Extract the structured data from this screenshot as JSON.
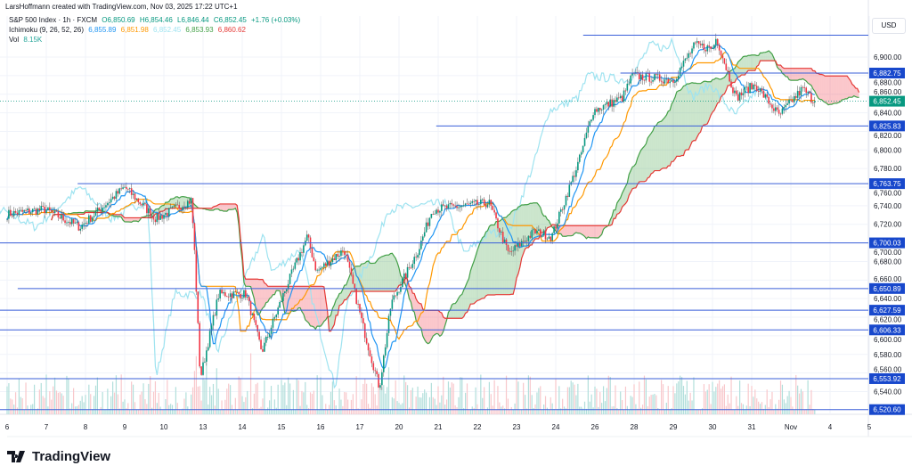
{
  "credit": "LarsHoffmann created with TradingView.com, Nov 03, 2025 17:22 UTC+1",
  "legend": {
    "symbol": "S&P 500 Index · 1h · FXCM",
    "open": "O6,850.69",
    "high": "H6,854.46",
    "low": "L6,846.44",
    "close": "C6,852.45",
    "change": "+1.76 (+0.03%)",
    "ichimoku_label": "Ichimoku (9, 26, 52, 26)",
    "ichimoku_values": [
      "6,855.89",
      "6,851.98",
      "6,852.45",
      "6,853.93",
      "6,860.62"
    ],
    "vol_label": "Vol",
    "vol_value": "8.15K"
  },
  "currency": "USD",
  "brand": "TradingView",
  "colors": {
    "up": "#089981",
    "down": "#f23645",
    "tenkan": "#2196f3",
    "kijun": "#ff9800",
    "chikou": "#9ee3f0",
    "spanA": "#43a047",
    "spanB": "#e53935",
    "level": "#3a5fd9",
    "label_bg": "#1848cc"
  },
  "chart_data": {
    "type": "candlestick",
    "bars_per_day": 23,
    "x_tick_labels": [
      "6",
      "7",
      "8",
      "9",
      "10",
      "13",
      "14",
      "15",
      "16",
      "17",
      "20",
      "21",
      "22",
      "23",
      "24",
      "26",
      "28",
      "29",
      "30",
      "31",
      "Nov",
      "4",
      "5"
    ],
    "y_tick_labels": [
      "6,900.00",
      "6,880.00",
      "6,860.00",
      "6,840.00",
      "6,820.00",
      "6,800.00",
      "6,780.00",
      "6,760.00",
      "6,740.00",
      "6,720.00",
      "6,700.00",
      "6,680.00",
      "6,660.00",
      "6,640.00",
      "6,620.00",
      "6,600.00",
      "6,580.00",
      "6,560.00",
      "6,540.00"
    ],
    "y_ticks": [
      6900,
      6880,
      6860,
      6840,
      6820,
      6800,
      6780,
      6760,
      6740,
      6720,
      6700,
      6680,
      6660,
      6640,
      6620,
      6600,
      6580,
      6560,
      6540
    ],
    "close_path_day_price": [
      [
        0,
        6731
      ],
      [
        0.95,
        6736
      ],
      [
        1.86,
        6717
      ],
      [
        3,
        6760
      ],
      [
        3.8,
        6726
      ],
      [
        4.7,
        6746
      ],
      [
        4.77,
        6702
      ],
      [
        4.93,
        6554
      ],
      [
        5.4,
        6645
      ],
      [
        6.1,
        6645
      ],
      [
        6.5,
        6583
      ],
      [
        7.1,
        6650
      ],
      [
        7.66,
        6707
      ],
      [
        7.9,
        6669
      ],
      [
        8.6,
        6693
      ],
      [
        9.1,
        6607
      ],
      [
        9.5,
        6544
      ],
      [
        9.8,
        6635
      ],
      [
        10.5,
        6693
      ],
      [
        10.85,
        6736
      ],
      [
        12.3,
        6743
      ],
      [
        12.8,
        6688
      ],
      [
        13.45,
        6712
      ],
      [
        13.9,
        6707
      ],
      [
        14.6,
        6789
      ],
      [
        14.95,
        6842
      ],
      [
        15.7,
        6856
      ],
      [
        15.95,
        6880
      ],
      [
        17,
        6875
      ],
      [
        17.55,
        6913
      ],
      [
        18,
        6909
      ],
      [
        18.1,
        6921
      ],
      [
        18.6,
        6856
      ],
      [
        18.9,
        6866
      ],
      [
        19.1,
        6870
      ],
      [
        19.7,
        6837
      ],
      [
        20.3,
        6866
      ],
      [
        20.6,
        6852
      ]
    ],
    "current_price": "6,852.45",
    "current_price_value": 6852.45,
    "levels": [
      {
        "price": 6923.5,
        "label": "",
        "start_day": 14.7
      },
      {
        "price": 6882.75,
        "label": "6,882.75",
        "start_day": 15.65
      },
      {
        "price": 6825.83,
        "label": "6,825.83",
        "start_day": 10.95
      },
      {
        "price": 6763.75,
        "label": "6,763.75",
        "start_day": 1.8
      },
      {
        "price": 6700.03,
        "label": "6,700.03",
        "start_day": -0.2
      },
      {
        "price": 6650.89,
        "label": "6,650.89",
        "start_day": 0.27
      },
      {
        "price": 6627.59,
        "label": "6,627.59",
        "start_day": -0.2
      },
      {
        "price": 6606.33,
        "label": "6,606.33",
        "start_day": -0.2
      },
      {
        "price": 6553.92,
        "label": "6,553.92",
        "start_day": -0.2
      },
      {
        "price": 6520.6,
        "label": "6,520.60",
        "start_day": -0.2
      }
    ]
  }
}
